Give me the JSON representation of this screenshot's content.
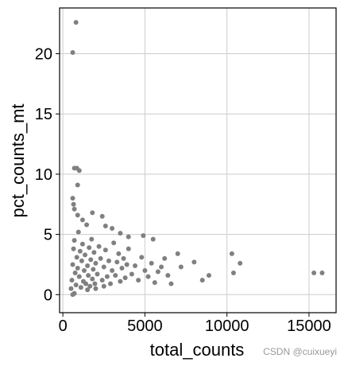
{
  "chart_data": {
    "type": "scatter",
    "x_label": "total_counts",
    "y_label": "pct_counts_mt",
    "watermark": "CSDN @cuixueyi",
    "color": "#808080",
    "grid": true,
    "xlim": [
      -200,
      16650
    ],
    "ylim": [
      -1.5,
      23.8
    ],
    "xticks": [
      0,
      5000,
      10000,
      15000
    ],
    "yticks": [
      0,
      5,
      10,
      15,
      20
    ],
    "x": [
      800,
      600,
      700,
      850,
      1000,
      900,
      600,
      650,
      1800,
      2400,
      10300,
      10800,
      10400,
      15300,
      15800,
      8900,
      8000,
      7000,
      7200,
      8500,
      6200,
      5500,
      4900,
      3500,
      4000,
      3000,
      2600,
      600,
      700,
      500,
      550,
      600,
      650,
      700,
      750,
      800,
      850,
      900,
      950,
      1000,
      1050,
      1100,
      1150,
      1200,
      1250,
      1300,
      1350,
      1400,
      1450,
      1500,
      1550,
      1600,
      1650,
      1700,
      1750,
      1800,
      1850,
      1900,
      1950,
      2000,
      2100,
      2200,
      2300,
      2400,
      2500,
      2600,
      2700,
      2800,
      2900,
      3000,
      3100,
      3200,
      3300,
      3400,
      3500,
      3600,
      3700,
      3800,
      3900,
      4000,
      4200,
      4400,
      4600,
      4800,
      5000,
      5200,
      5400,
      5600,
      5800,
      6000,
      6400,
      6600,
      2000,
      1200,
      900,
      700,
      1500,
      2500
    ],
    "values": [
      22.6,
      20.1,
      10.5,
      10.5,
      10.3,
      9.1,
      8.0,
      7.5,
      6.8,
      6.5,
      3.4,
      2.6,
      1.8,
      1.8,
      1.8,
      1.6,
      2.7,
      3.4,
      2.3,
      1.2,
      3.0,
      4.6,
      4.9,
      5.1,
      4.8,
      5.5,
      5.7,
      0.0,
      0.1,
      0.5,
      1.2,
      2.5,
      3.8,
      4.5,
      1.8,
      0.8,
      3.1,
      2.2,
      5.2,
      1.5,
      3.6,
      0.6,
      2.8,
      4.2,
      1.1,
      2.0,
      3.3,
      0.9,
      5.8,
      2.4,
      1.6,
      3.9,
      0.7,
      2.9,
      4.6,
      1.3,
      2.1,
      3.5,
      0.9,
      2.6,
      1.7,
      4.0,
      3.0,
      1.2,
      2.3,
      3.7,
      1.5,
      2.8,
      0.9,
      2.0,
      4.3,
      1.6,
      2.7,
      3.4,
      1.1,
      2.2,
      3.0,
      1.4,
      2.5,
      3.8,
      1.7,
      2.4,
      1.2,
      3.1,
      2.0,
      1.5,
      2.6,
      1.0,
      1.9,
      2.3,
      1.6,
      0.9,
      0.5,
      6.2,
      6.6,
      7.1,
      0.4,
      0.7
    ]
  }
}
